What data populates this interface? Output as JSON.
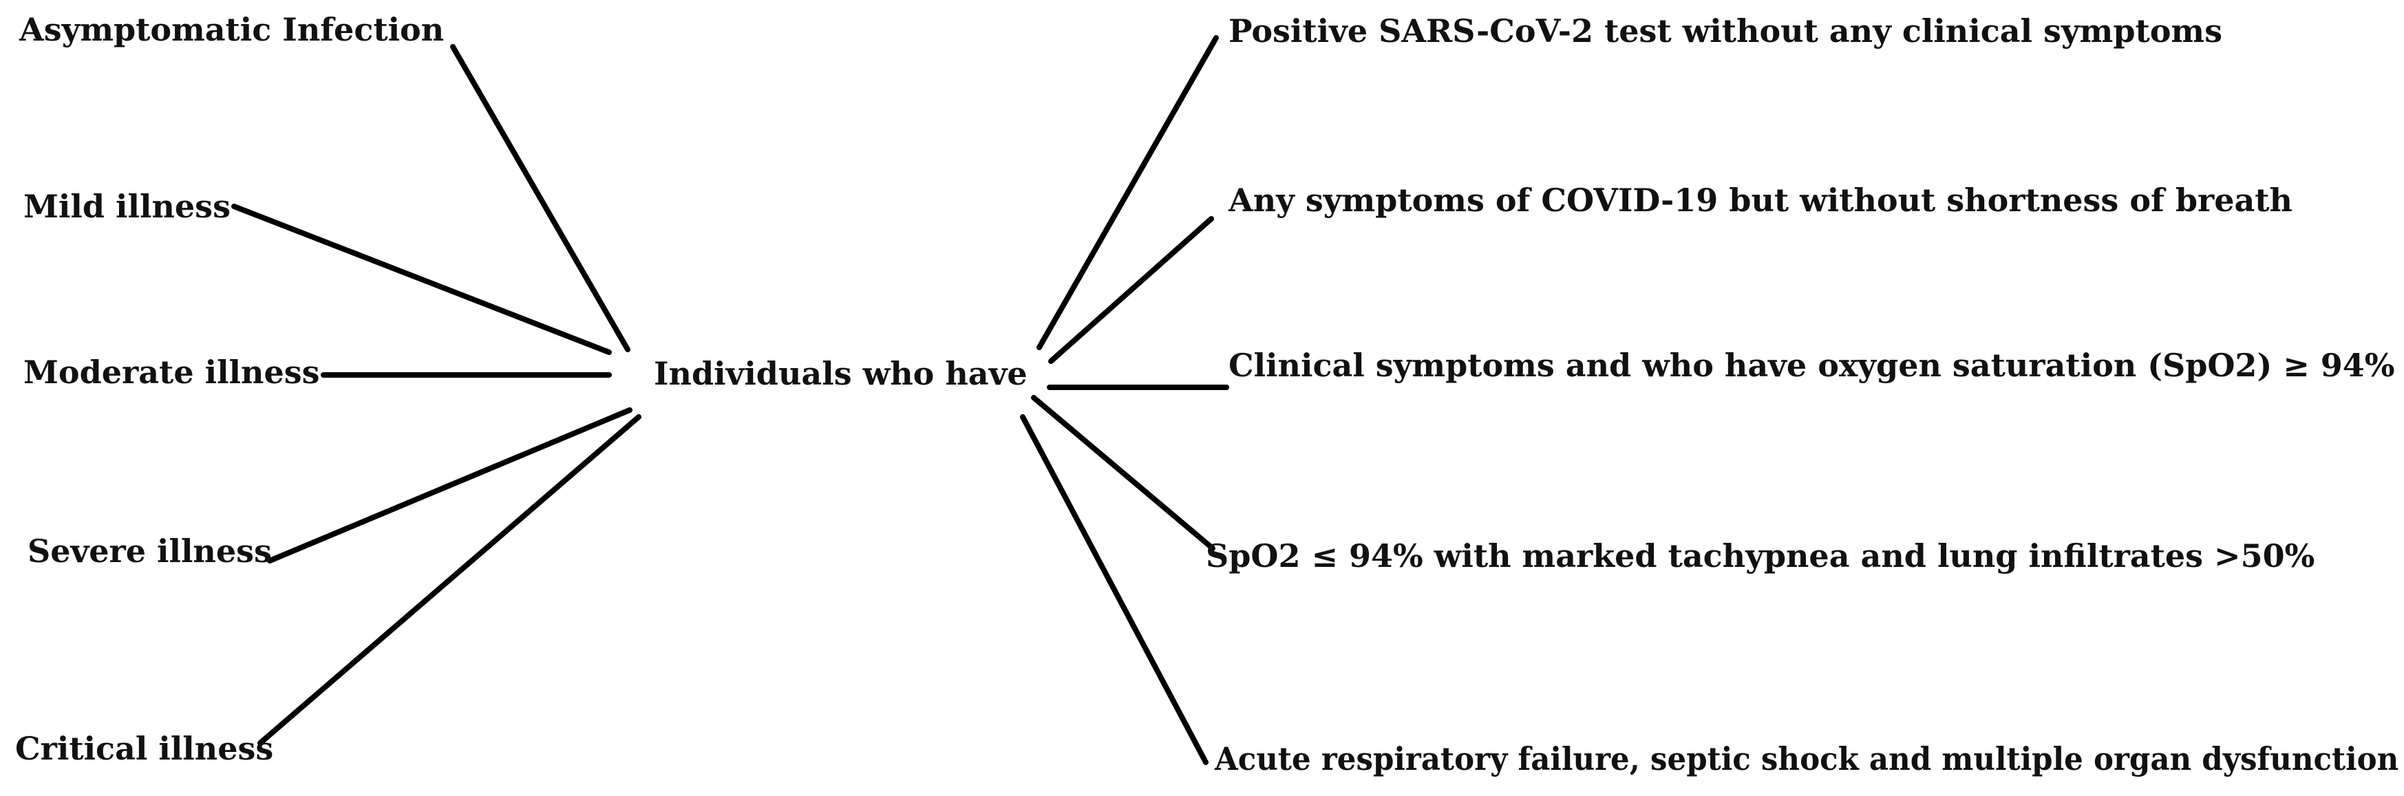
{
  "diagram": {
    "center": "Individuals who have",
    "categories": [
      {
        "name": "Asymptomatic  Infection"
      },
      {
        "name": "Mild illness"
      },
      {
        "name": "Moderate illness"
      },
      {
        "name": "Severe illness"
      },
      {
        "name": "Critical illness"
      }
    ],
    "definitions": [
      {
        "text": "Positive SARS-CoV-2 test without any clinical symptoms"
      },
      {
        "text": "Any symptoms of COVID-19 but without shortness of breath"
      },
      {
        "text": "Clinical symptoms  and who have oxygen saturation (SpO2) ≥ 94%"
      },
      {
        "text": "SpO2 ≤ 94%  with marked tachypnea and  lung infiltrates >50%"
      },
      {
        "text": "Acute respiratory failure, septic shock and multiple organ dysfunction"
      }
    ],
    "line_color": "#000000",
    "text_color": "#111111"
  }
}
